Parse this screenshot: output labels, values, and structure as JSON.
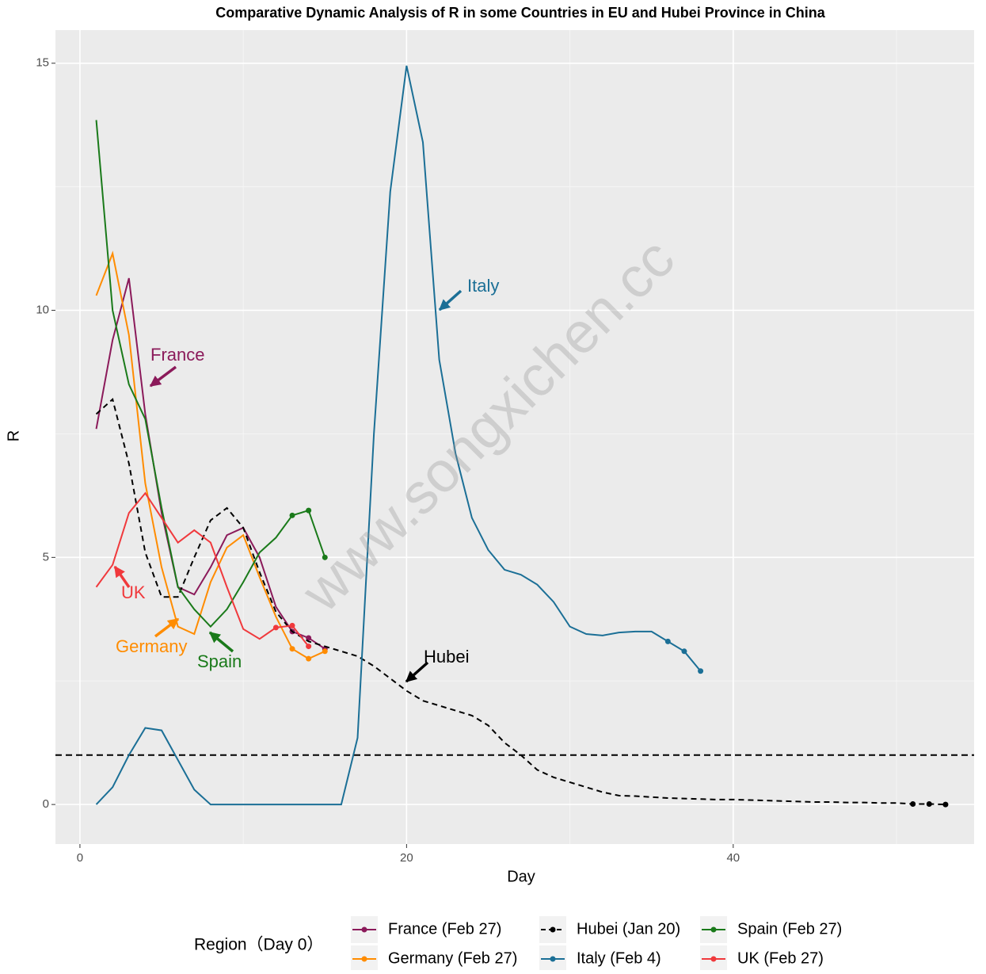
{
  "chart_data": {
    "type": "line",
    "title": "Comparative Dynamic Analysis of R in some Countries in EU and Hubei Province in China",
    "x_label": "Day",
    "y_label": "R",
    "xlim": [
      -1.5,
      54.75
    ],
    "ylim": [
      -0.8,
      15.67
    ],
    "xticks": [
      0,
      20,
      40
    ],
    "yticks": [
      0,
      5,
      10,
      15
    ],
    "grid": true,
    "hline": 1,
    "legend_title": "Region（Day 0）",
    "legend_position": "bottom",
    "watermark": "www.songxichen.cc",
    "annotations": [
      {
        "text": "France",
        "color": "#8b1a5a"
      },
      {
        "text": "Germany",
        "color": "#ff8c00"
      },
      {
        "text": "Hubei",
        "color": "#000000"
      },
      {
        "text": "Italy",
        "color": "#1b6f96"
      },
      {
        "text": "Spain",
        "color": "#1a7a1a"
      },
      {
        "text": "UK",
        "color": "#f0393c"
      }
    ],
    "series": [
      {
        "name": "France (Feb 27)",
        "color": "#8b1a5a",
        "dashed": false,
        "x": [
          1,
          2,
          3,
          4,
          5,
          6,
          7,
          8,
          9,
          10,
          11,
          12,
          13,
          14,
          15
        ],
        "values": [
          7.6,
          9.4,
          10.65,
          7.9,
          5.9,
          4.4,
          4.25,
          4.8,
          5.45,
          5.6,
          5.0,
          4.0,
          3.5,
          3.37,
          3.15
        ]
      },
      {
        "name": "Germany (Feb 27)",
        "color": "#ff8c00",
        "dashed": false,
        "x": [
          1,
          2,
          3,
          4,
          5,
          6,
          7,
          8,
          9,
          10,
          11,
          12,
          13,
          14,
          15
        ],
        "values": [
          10.3,
          11.15,
          9.5,
          6.5,
          4.8,
          3.6,
          3.45,
          4.5,
          5.2,
          5.45,
          4.6,
          3.8,
          3.15,
          2.95,
          3.1
        ]
      },
      {
        "name": "Hubei (Jan 20)",
        "color": "#000000",
        "dashed": true,
        "x": [
          1,
          2,
          3,
          4,
          5,
          6,
          7,
          8,
          9,
          10,
          11,
          12,
          13,
          14,
          15,
          16,
          17,
          18,
          19,
          20,
          21,
          22,
          23,
          24,
          25,
          26,
          27,
          28,
          29,
          30,
          31,
          32,
          33,
          34,
          35,
          36,
          37,
          38,
          39,
          40,
          41,
          42,
          43,
          44,
          45,
          46,
          47,
          48,
          49,
          50,
          51,
          52,
          53
        ],
        "values": [
          7.9,
          8.2,
          6.9,
          5.1,
          4.2,
          4.2,
          5.0,
          5.75,
          6.0,
          5.6,
          4.7,
          3.9,
          3.5,
          3.3,
          3.2,
          3.1,
          3.0,
          2.8,
          2.55,
          2.3,
          2.1,
          2.0,
          1.9,
          1.8,
          1.6,
          1.25,
          1.0,
          0.7,
          0.55,
          0.45,
          0.35,
          0.25,
          0.18,
          0.17,
          0.15,
          0.13,
          0.12,
          0.11,
          0.1,
          0.1,
          0.09,
          0.08,
          0.07,
          0.06,
          0.05,
          0.05,
          0.04,
          0.04,
          0.03,
          0.03,
          0.01,
          0.01,
          0.0
        ]
      },
      {
        "name": "Italy (Feb 4)",
        "color": "#1b6f96",
        "dashed": false,
        "x": [
          1,
          2,
          3,
          4,
          5,
          6,
          7,
          8,
          9,
          10,
          11,
          12,
          13,
          14,
          15,
          16,
          17,
          18,
          19,
          20,
          21,
          22,
          23,
          24,
          25,
          26,
          27,
          28,
          29,
          30,
          31,
          32,
          33,
          34,
          35,
          36,
          37,
          38
        ],
        "values": [
          0,
          0.35,
          1.0,
          1.55,
          1.5,
          0.9,
          0.3,
          0,
          0,
          0,
          0,
          0,
          0,
          0,
          0,
          0,
          1.35,
          7.5,
          12.4,
          14.95,
          13.4,
          9.0,
          7.1,
          5.8,
          5.15,
          4.75,
          4.65,
          4.45,
          4.1,
          3.6,
          3.45,
          3.42,
          3.48,
          3.5,
          3.5,
          3.3,
          3.1,
          2.7
        ]
      },
      {
        "name": "Spain (Feb 27)",
        "color": "#1a7a1a",
        "dashed": false,
        "x": [
          1,
          2,
          3,
          4,
          5,
          6,
          7,
          8,
          9,
          10,
          11,
          12,
          13,
          14,
          15
        ],
        "values": [
          13.85,
          10.0,
          8.5,
          7.8,
          6.0,
          4.4,
          3.95,
          3.6,
          3.95,
          4.5,
          5.1,
          5.4,
          5.85,
          5.95,
          5.0
        ]
      },
      {
        "name": "UK (Feb 27)",
        "color": "#f0393c",
        "dashed": false,
        "x": [
          1,
          2,
          3,
          4,
          5,
          6,
          7,
          8,
          9,
          10,
          11,
          12,
          13,
          14
        ],
        "values": [
          4.4,
          4.85,
          5.9,
          6.3,
          5.8,
          5.3,
          5.55,
          5.3,
          4.4,
          3.55,
          3.35,
          3.58,
          3.62,
          3.2
        ]
      }
    ]
  }
}
